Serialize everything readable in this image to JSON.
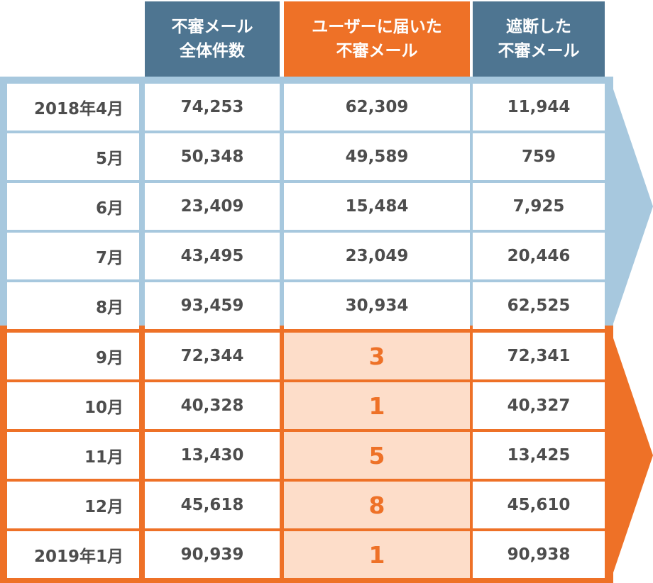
{
  "chart_data": {
    "type": "table",
    "columns": [
      {
        "line1": "不審メール",
        "line2": "全体件数",
        "color": "#4e7591"
      },
      {
        "line1": "ユーザーに届いた",
        "line2": "不審メール",
        "color": "#ee7127"
      },
      {
        "line1": "遮断した",
        "line2": "不審メール",
        "color": "#4e7591"
      }
    ],
    "rows": [
      {
        "month": "2018年4月",
        "total": "74,253",
        "delivered": "62,309",
        "blocked": "11,944"
      },
      {
        "month": "5月",
        "total": "50,348",
        "delivered": "49,589",
        "blocked": "759"
      },
      {
        "month": "6月",
        "total": "23,409",
        "delivered": "15,484",
        "blocked": "7,925"
      },
      {
        "month": "7月",
        "total": "43,495",
        "delivered": "23,049",
        "blocked": "20,446"
      },
      {
        "month": "8月",
        "total": "93,459",
        "delivered": "30,934",
        "blocked": "62,525"
      },
      {
        "month": "9月",
        "total": "72,344",
        "delivered": "3",
        "blocked": "72,341"
      },
      {
        "month": "10月",
        "total": "40,328",
        "delivered": "1",
        "blocked": "40,327"
      },
      {
        "month": "11月",
        "total": "13,430",
        "delivered": "5",
        "blocked": "13,425"
      },
      {
        "month": "12月",
        "total": "45,618",
        "delivered": "8",
        "blocked": "45,610"
      },
      {
        "month": "2019年1月",
        "total": "90,939",
        "delivered": "1",
        "blocked": "90,938"
      }
    ],
    "groups": [
      {
        "rows": [
          0,
          4
        ],
        "color": "#a7c8de"
      },
      {
        "rows": [
          5,
          9
        ],
        "color": "#ee7127",
        "highlight_fill": "#fdddc9"
      }
    ]
  }
}
